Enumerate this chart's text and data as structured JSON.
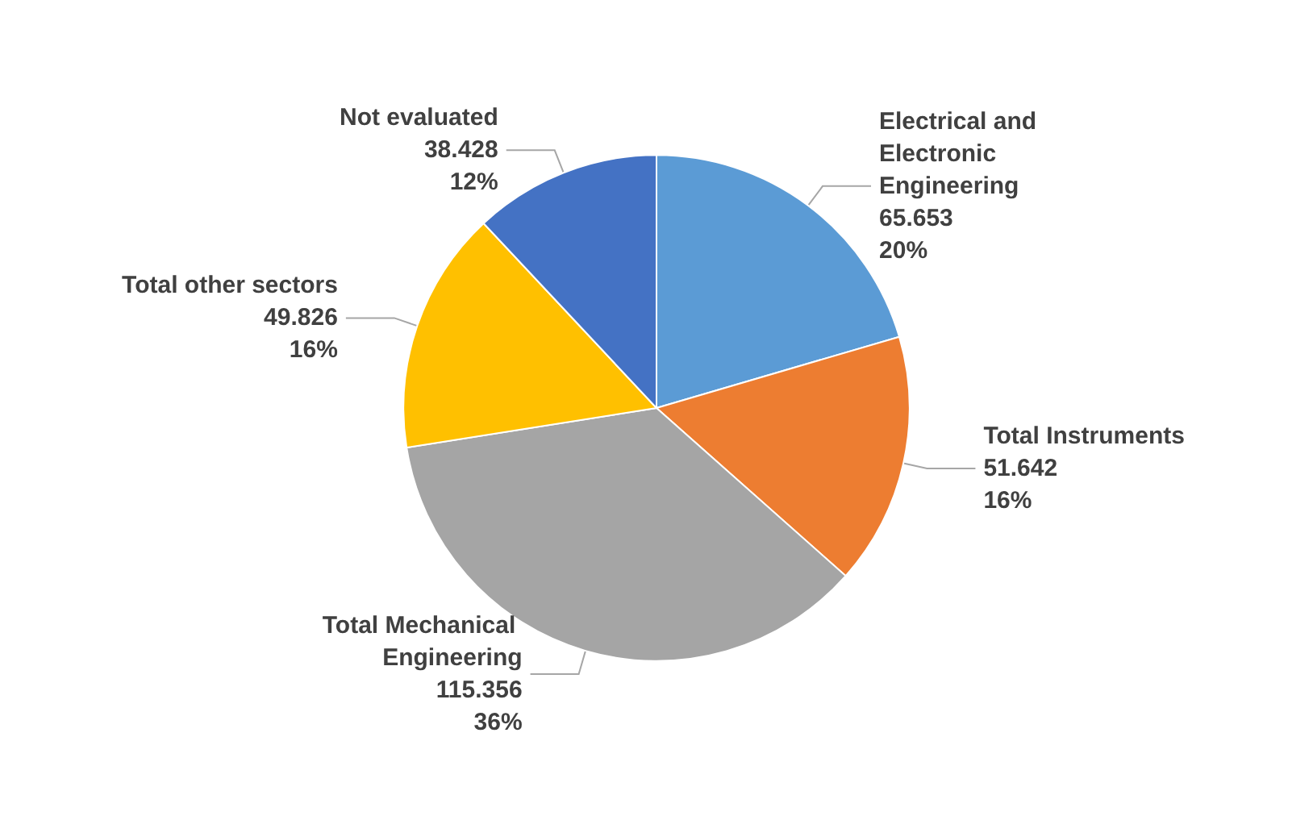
{
  "chart_data": {
    "type": "pie",
    "categories": [
      "Electrical and Electronic Engineering",
      "Total Instruments",
      "Total Mechanical Engineering",
      "Total other sectors",
      "Not evaluated"
    ],
    "values": [
      65.653,
      51.642,
      115.356,
      49.826,
      38.428
    ],
    "value_labels": [
      "65.653\n20%",
      "51.642\n16%",
      "115.356\n36%",
      "49.826\n16%",
      "38.428\n12%"
    ],
    "colors": [
      "#5b9bd5",
      "#ed7d31",
      "#a5a5a5",
      "#ffc000",
      "#4472c4"
    ]
  }
}
